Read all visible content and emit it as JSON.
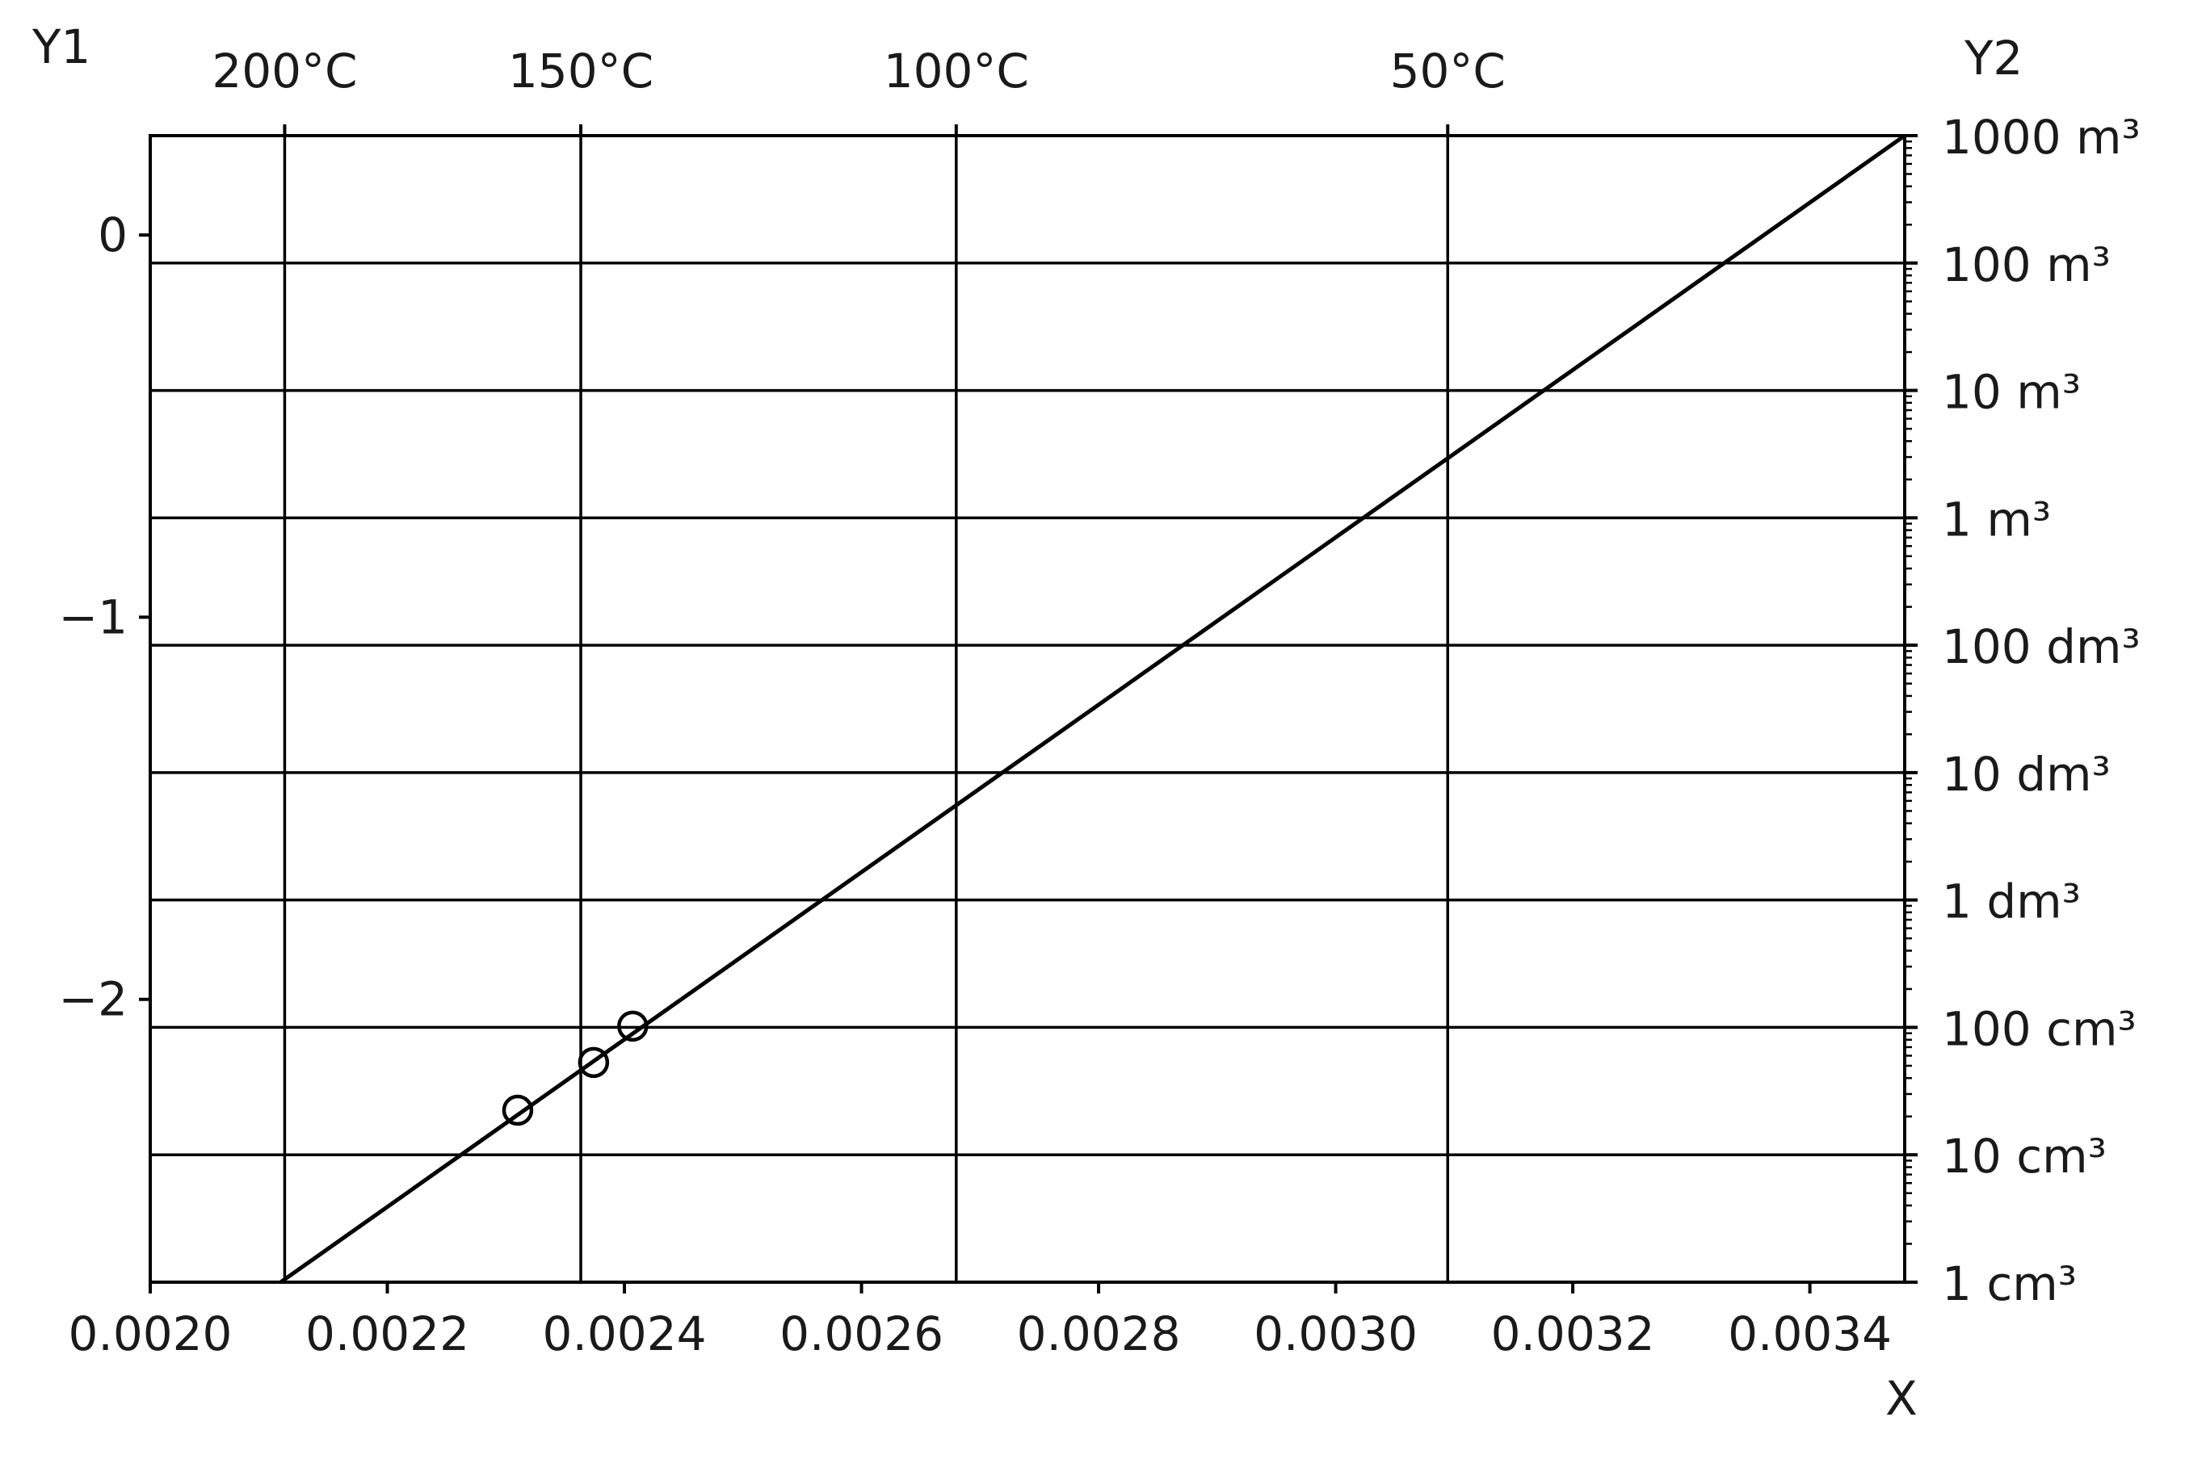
{
  "chart_data": {
    "type": "line",
    "title": "",
    "xlabel": "X",
    "ylabel": "Y1",
    "y2label": "Y2",
    "xlim": [
      0.002,
      0.00348
    ],
    "ylim": [
      -2.74,
      0.26
    ],
    "x_ticks": [
      {
        "value": 0.002,
        "label": "0.0020"
      },
      {
        "value": 0.0022,
        "label": "0.0022"
      },
      {
        "value": 0.0024,
        "label": "0.0024"
      },
      {
        "value": 0.0026,
        "label": "0.0026"
      },
      {
        "value": 0.0028,
        "label": "0.0028"
      },
      {
        "value": 0.003,
        "label": "0.0030"
      },
      {
        "value": 0.0032,
        "label": "0.0032"
      },
      {
        "value": 0.0034,
        "label": "0.0034"
      }
    ],
    "y1_ticks": [
      {
        "value": 0,
        "label": "0"
      },
      {
        "value": -1,
        "label": "−1"
      },
      {
        "value": -2,
        "label": "−2"
      }
    ],
    "top_ticks": [
      {
        "value": 0.0021134,
        "label": "200°C"
      },
      {
        "value": 0.0023632,
        "label": "150°C"
      },
      {
        "value": 0.0026799,
        "label": "100°C"
      },
      {
        "value": 0.0030945,
        "label": "50°C"
      }
    ],
    "y2_ticks": [
      {
        "value": 0.26,
        "label": "1000 m³"
      },
      {
        "value": -0.0733,
        "label": "100 m³"
      },
      {
        "value": -0.4067,
        "label": "10 m³"
      },
      {
        "value": -0.74,
        "label": "1 m³"
      },
      {
        "value": -1.0733,
        "label": "100 dm³"
      },
      {
        "value": -1.4067,
        "label": "10 dm³"
      },
      {
        "value": -1.74,
        "label": "1 dm³"
      },
      {
        "value": -2.0733,
        "label": "100 cm³"
      },
      {
        "value": -2.4067,
        "label": "10 cm³"
      },
      {
        "value": -2.74,
        "label": "1 cm³"
      }
    ],
    "grid": true,
    "series": [
      {
        "kind": "line",
        "x": [
          0.00211,
          0.00348
        ],
        "y": [
          -2.74,
          0.26
        ]
      },
      {
        "kind": "scatter",
        "marker": "open-circle",
        "x": [
          0.00231,
          0.002374,
          0.002407
        ],
        "y": [
          -2.29,
          -2.165,
          -2.07
        ]
      }
    ]
  }
}
